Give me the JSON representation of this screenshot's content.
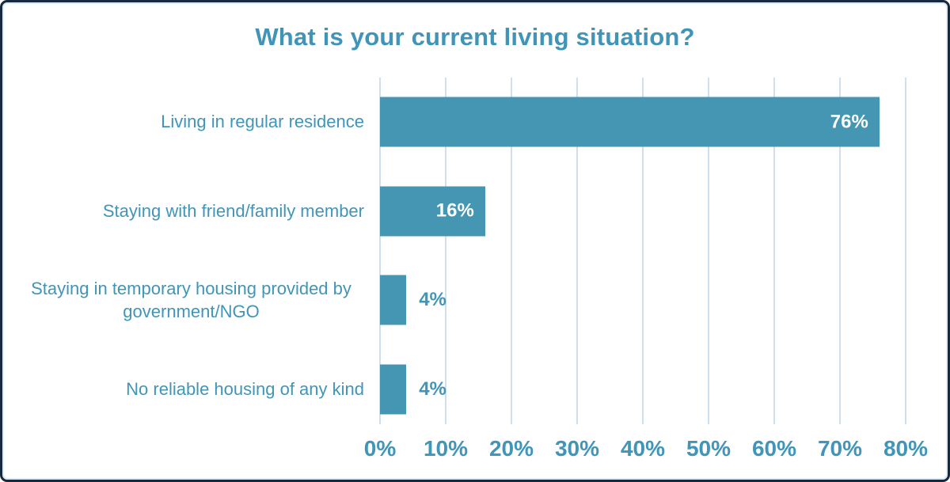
{
  "chart_data": {
    "type": "bar",
    "orientation": "horizontal",
    "title": "What is your current living situation?",
    "categories": [
      "Living in regular residence",
      "Staying with friend/family member",
      "Staying in temporary housing provided by government/NGO",
      "No reliable housing of any kind"
    ],
    "values": [
      76,
      16,
      4,
      4
    ],
    "value_labels": [
      "76%",
      "16%",
      "4%",
      "4%"
    ],
    "xlabel": "",
    "ylabel": "",
    "xlim": [
      0,
      80
    ],
    "xticks": [
      "0%",
      "10%",
      "20%",
      "30%",
      "40%",
      "50%",
      "60%",
      "70%",
      "80%"
    ],
    "grid": "vertical",
    "legend": "none",
    "value_inside_threshold": 10,
    "colors": {
      "bar": "#4496B2",
      "title_text": "#3F94B8",
      "category_text": "#4095B8",
      "tick_text": "#4095B8",
      "value_inside_text": "#FFFFFF",
      "value_outside_text": "#4095B8",
      "gridline": "#CFE0EC",
      "card_border": "#16293D",
      "background": "#FFFFFF"
    }
  }
}
